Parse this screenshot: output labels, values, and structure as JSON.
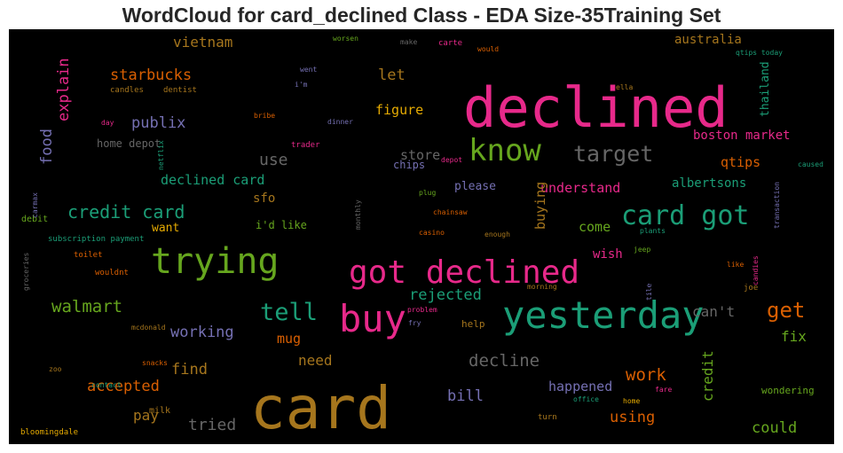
{
  "title": "WordCloud for card_declined Class - EDA Size-35Training Set",
  "words": [
    {
      "text": "declined",
      "color": "#e7298a",
      "size": 62,
      "rot": 0
    },
    {
      "text": "card",
      "color": "#a6761d",
      "size": 66,
      "rot": 0
    },
    {
      "text": "yesterday",
      "color": "#1b9e77",
      "size": 42,
      "rot": 0
    },
    {
      "text": "trying",
      "color": "#66a61e",
      "size": 40,
      "rot": 0
    },
    {
      "text": "buy",
      "color": "#e7298a",
      "size": 42,
      "rot": 0
    },
    {
      "text": "got declined",
      "color": "#e7298a",
      "size": 36,
      "rot": 0
    },
    {
      "text": "card got",
      "color": "#1b9e77",
      "size": 30,
      "rot": 0
    },
    {
      "text": "know",
      "color": "#66a61e",
      "size": 34,
      "rot": 0
    },
    {
      "text": "target",
      "color": "#666666",
      "size": 25,
      "rot": 0
    },
    {
      "text": "tell",
      "color": "#1b9e77",
      "size": 27,
      "rot": 0
    },
    {
      "text": "get",
      "color": "#d95f02",
      "size": 24,
      "rot": 0
    },
    {
      "text": "credit card",
      "color": "#1b9e77",
      "size": 20,
      "rot": 0
    },
    {
      "text": "walmart",
      "color": "#66a61e",
      "size": 19,
      "rot": 0
    },
    {
      "text": "decline",
      "color": "#666666",
      "size": 19,
      "rot": 0
    },
    {
      "text": "work",
      "color": "#d95f02",
      "size": 19,
      "rot": 0
    },
    {
      "text": "use",
      "color": "#666666",
      "size": 18,
      "rot": 0
    },
    {
      "text": "rejected",
      "color": "#1b9e77",
      "size": 17,
      "rot": 0
    },
    {
      "text": "working",
      "color": "#7570b3",
      "size": 17,
      "rot": 0
    },
    {
      "text": "publix",
      "color": "#7570b3",
      "size": 17,
      "rot": 0
    },
    {
      "text": "starbucks",
      "color": "#d95f02",
      "size": 17,
      "rot": 0
    },
    {
      "text": "vietnam",
      "color": "#a6761d",
      "size": 16,
      "rot": 0
    },
    {
      "text": "let",
      "color": "#a6761d",
      "size": 17,
      "rot": 0
    },
    {
      "text": "figure",
      "color": "#e6ab02",
      "size": 15,
      "rot": 0
    },
    {
      "text": "store",
      "color": "#666666",
      "size": 15,
      "rot": 0
    },
    {
      "text": "understand",
      "color": "#e7298a",
      "size": 15,
      "rot": 0
    },
    {
      "text": "please",
      "color": "#7570b3",
      "size": 13,
      "rot": 0
    },
    {
      "text": "declined card",
      "color": "#1b9e77",
      "size": 15,
      "rot": 0
    },
    {
      "text": "sfo",
      "color": "#a6761d",
      "size": 14,
      "rot": 0
    },
    {
      "text": "come",
      "color": "#66a61e",
      "size": 15,
      "rot": 0
    },
    {
      "text": "wish",
      "color": "#e7298a",
      "size": 14,
      "rot": 0
    },
    {
      "text": "can't",
      "color": "#666666",
      "size": 16,
      "rot": 0
    },
    {
      "text": "fix",
      "color": "#66a61e",
      "size": 16,
      "rot": 0
    },
    {
      "text": "qtips",
      "color": "#d95f02",
      "size": 15,
      "rot": 0
    },
    {
      "text": "albertsons",
      "color": "#1b9e77",
      "size": 14,
      "rot": 0
    },
    {
      "text": "boston market",
      "color": "#e7298a",
      "size": 14,
      "rot": 0
    },
    {
      "text": "australia",
      "color": "#a6761d",
      "size": 14,
      "rot": 0
    },
    {
      "text": "accepted",
      "color": "#d95f02",
      "size": 17,
      "rot": 0
    },
    {
      "text": "find",
      "color": "#a6761d",
      "size": 17,
      "rot": 0
    },
    {
      "text": "need",
      "color": "#a6761d",
      "size": 16,
      "rot": 0
    },
    {
      "text": "mug",
      "color": "#d95f02",
      "size": 15,
      "rot": 0
    },
    {
      "text": "pay",
      "color": "#a6761d",
      "size": 16,
      "rot": 0
    },
    {
      "text": "tried",
      "color": "#666666",
      "size": 18,
      "rot": 0
    },
    {
      "text": "bill",
      "color": "#7570b3",
      "size": 17,
      "rot": 0
    },
    {
      "text": "happened",
      "color": "#7570b3",
      "size": 15,
      "rot": 0
    },
    {
      "text": "using",
      "color": "#d95f02",
      "size": 17,
      "rot": 0
    },
    {
      "text": "could",
      "color": "#66a61e",
      "size": 17,
      "rot": 0
    },
    {
      "text": "want",
      "color": "#e6ab02",
      "size": 13,
      "rot": 0
    },
    {
      "text": "i'd like",
      "color": "#66a61e",
      "size": 12,
      "rot": 0
    },
    {
      "text": "home depot",
      "color": "#666666",
      "size": 12,
      "rot": 0
    },
    {
      "text": "chips",
      "color": "#7570b3",
      "size": 12,
      "rot": 0
    },
    {
      "text": "help",
      "color": "#a6761d",
      "size": 11,
      "rot": 0
    },
    {
      "text": "wondering",
      "color": "#66a61e",
      "size": 11,
      "rot": 0
    },
    {
      "text": "food",
      "color": "#7570b3",
      "size": 17,
      "rot": -90
    },
    {
      "text": "explain",
      "color": "#e7298a",
      "size": 17,
      "rot": -90
    },
    {
      "text": "buying",
      "color": "#a6761d",
      "size": 15,
      "rot": -90
    },
    {
      "text": "credit",
      "color": "#66a61e",
      "size": 16,
      "rot": -90
    },
    {
      "text": "thailand",
      "color": "#1b9e77",
      "size": 13,
      "rot": -90
    },
    {
      "text": "subscription payment",
      "color": "#1b9e77",
      "size": 9,
      "rot": 0
    },
    {
      "text": "debit",
      "color": "#66a61e",
      "size": 10,
      "rot": 0
    },
    {
      "text": "toilet",
      "color": "#d95f02",
      "size": 9,
      "rot": 0
    },
    {
      "text": "wouldnt",
      "color": "#d95f02",
      "size": 9,
      "rot": 0
    },
    {
      "text": "mcdonald",
      "color": "#a6761d",
      "size": 8,
      "rot": 0
    },
    {
      "text": "snacks",
      "color": "#d95f02",
      "size": 8,
      "rot": 0
    },
    {
      "text": "zoo",
      "color": "#a6761d",
      "size": 8,
      "rot": 0
    },
    {
      "text": "contact",
      "color": "#1b9e77",
      "size": 8,
      "rot": 0
    },
    {
      "text": "milk",
      "color": "#a6761d",
      "size": 10,
      "rot": 0
    },
    {
      "text": "bloomingdale",
      "color": "#e6ab02",
      "size": 9,
      "rot": 0
    },
    {
      "text": "candles",
      "color": "#a6761d",
      "size": 9,
      "rot": 0
    },
    {
      "text": "dentist",
      "color": "#a6761d",
      "size": 9,
      "rot": 0
    },
    {
      "text": "worsen",
      "color": "#66a61e",
      "size": 8,
      "rot": 0
    },
    {
      "text": "make",
      "color": "#666666",
      "size": 8,
      "rot": 0
    },
    {
      "text": "carte",
      "color": "#e7298a",
      "size": 9,
      "rot": 0
    },
    {
      "text": "would",
      "color": "#d95f02",
      "size": 8,
      "rot": 0
    },
    {
      "text": "went",
      "color": "#7570b3",
      "size": 8,
      "rot": 0
    },
    {
      "text": "i'm",
      "color": "#7570b3",
      "size": 8,
      "rot": 0
    },
    {
      "text": "ella",
      "color": "#a6761d",
      "size": 8,
      "rot": 0
    },
    {
      "text": "qtips today",
      "color": "#1b9e77",
      "size": 8,
      "rot": 0
    },
    {
      "text": "bribe",
      "color": "#d95f02",
      "size": 8,
      "rot": 0
    },
    {
      "text": "dinner",
      "color": "#7570b3",
      "size": 8,
      "rot": 0
    },
    {
      "text": "trader",
      "color": "#e7298a",
      "size": 9,
      "rot": 0
    },
    {
      "text": "depot",
      "color": "#e7298a",
      "size": 8,
      "rot": 0
    },
    {
      "text": "plug",
      "color": "#66a61e",
      "size": 8,
      "rot": 0
    },
    {
      "text": "chainsaw",
      "color": "#d95f02",
      "size": 8,
      "rot": 0
    },
    {
      "text": "casino",
      "color": "#d95f02",
      "size": 8,
      "rot": 0
    },
    {
      "text": "enough",
      "color": "#a6761d",
      "size": 8,
      "rot": 0
    },
    {
      "text": "plants",
      "color": "#1b9e77",
      "size": 8,
      "rot": 0
    },
    {
      "text": "jeep",
      "color": "#66a61e",
      "size": 8,
      "rot": 0
    },
    {
      "text": "morning",
      "color": "#a6761d",
      "size": 8,
      "rot": 0
    },
    {
      "text": "problem",
      "color": "#e7298a",
      "size": 8,
      "rot": 0
    },
    {
      "text": "fry",
      "color": "#7570b3",
      "size": 8,
      "rot": 0
    },
    {
      "text": "like",
      "color": "#d95f02",
      "size": 8,
      "rot": 0
    },
    {
      "text": "joe",
      "color": "#a6761d",
      "size": 9,
      "rot": 0
    },
    {
      "text": "caused",
      "color": "#1b9e77",
      "size": 8,
      "rot": 0
    },
    {
      "text": "office",
      "color": "#1b9e77",
      "size": 8,
      "rot": 0
    },
    {
      "text": "home",
      "color": "#e6ab02",
      "size": 8,
      "rot": 0
    },
    {
      "text": "fare",
      "color": "#e7298a",
      "size": 8,
      "rot": 0
    },
    {
      "text": "turn",
      "color": "#a6761d",
      "size": 9,
      "rot": 0
    },
    {
      "text": "day",
      "color": "#e7298a",
      "size": 8,
      "rot": 0
    },
    {
      "text": "netflix",
      "color": "#1b9e77",
      "size": 8,
      "rot": -90
    },
    {
      "text": "carmax",
      "color": "#7570b3",
      "size": 8,
      "rot": -90
    },
    {
      "text": "groceries",
      "color": "#666666",
      "size": 8,
      "rot": -90
    },
    {
      "text": "monthly",
      "color": "#666666",
      "size": 8,
      "rot": -90
    },
    {
      "text": "transaction",
      "color": "#7570b3",
      "size": 8,
      "rot": -90
    },
    {
      "text": "candies",
      "color": "#e7298a",
      "size": 8,
      "rot": -90
    },
    {
      "text": "tile",
      "color": "#7570b3",
      "size": 8,
      "rot": -90
    }
  ]
}
